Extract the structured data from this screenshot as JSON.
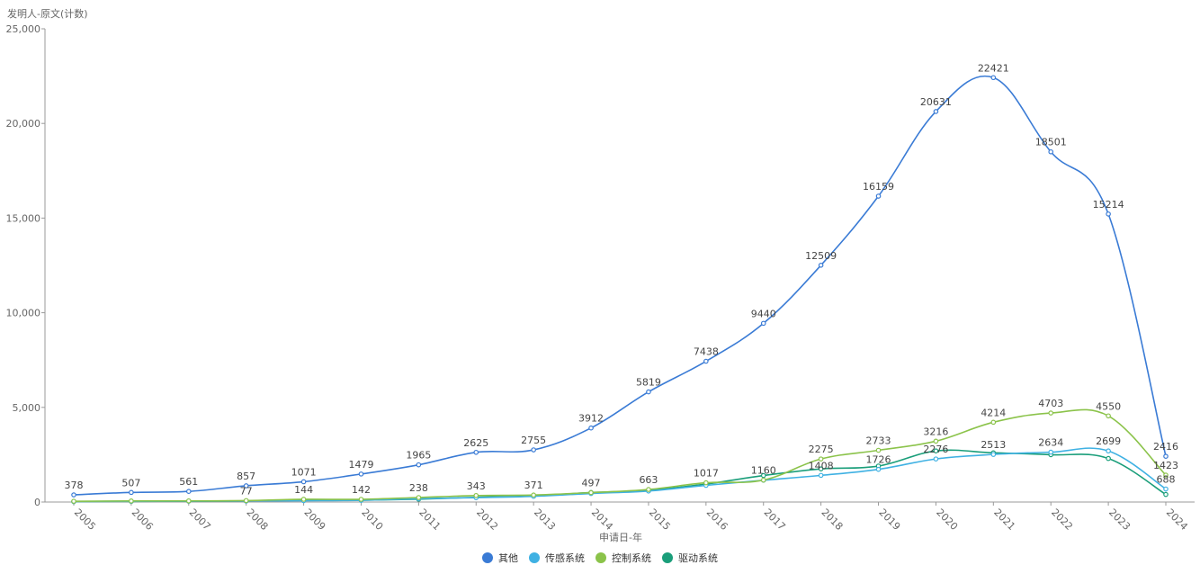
{
  "chart_data": {
    "type": "line",
    "y_title": "发明人-原文(计数)",
    "xlabel": "申请日-年",
    "ylim": [
      0,
      25000
    ],
    "y_ticks": [
      "0",
      "5,000",
      "10,000",
      "15,000",
      "20,000",
      "25,000"
    ],
    "y_tick_values": [
      0,
      5000,
      10000,
      15000,
      20000,
      25000
    ],
    "categories": [
      "2005",
      "2006",
      "2007",
      "2008",
      "2009",
      "2010",
      "2011",
      "2012",
      "2013",
      "2014",
      "2015",
      "2016",
      "2017",
      "2018",
      "2019",
      "2020",
      "2021",
      "2022",
      "2023",
      "2024"
    ],
    "series": [
      {
        "name": "其他",
        "color": "#3a7bd5",
        "values": [
          378,
          507,
          561,
          857,
          1071,
          1479,
          1965,
          2625,
          2755,
          3912,
          5819,
          7438,
          9440,
          12509,
          16159,
          20631,
          22421,
          18501,
          15214,
          2416
        ],
        "labels": [
          "378",
          "507",
          "561",
          "857",
          "1071",
          "1479",
          "1965",
          "2625",
          "2755",
          "3912",
          "5819",
          "7438",
          "9440",
          "12509",
          "16159",
          "20631",
          "22421",
          "18501",
          "15214",
          "2416"
        ]
      },
      {
        "name": "传感系统",
        "color": "#3fb1e3",
        "values": [
          30,
          40,
          50,
          60,
          70,
          90,
          180,
          230,
          300,
          450,
          580,
          880,
          1150,
          1408,
          1726,
          2276,
          2513,
          2634,
          2699,
          688
        ],
        "labels": [
          "",
          "",
          "",
          "",
          "",
          "",
          "",
          "",
          "",
          "",
          "",
          "",
          "",
          "1408",
          "1726",
          "2276",
          "2513",
          "2634",
          "2699",
          "688"
        ]
      },
      {
        "name": "控制系统",
        "color": "#8bc34a",
        "values": [
          40,
          55,
          60,
          77,
          144,
          142,
          238,
          343,
          371,
          497,
          663,
          1017,
          1160,
          2275,
          2733,
          3216,
          4214,
          4703,
          4550,
          1423
        ],
        "labels": [
          "",
          "",
          "",
          "77",
          "144",
          "142",
          "238",
          "343",
          "371",
          "497",
          "663",
          "1017",
          "1160",
          "2275",
          "2733",
          "3216",
          "4214",
          "4703",
          "4550",
          "1423"
        ]
      },
      {
        "name": "驱动系统",
        "color": "#1a9e7a",
        "values": [
          25,
          35,
          45,
          55,
          90,
          100,
          150,
          250,
          320,
          500,
          620,
          950,
          1400,
          1750,
          1900,
          2700,
          2600,
          2500,
          2300,
          400
        ],
        "labels": []
      }
    ]
  }
}
